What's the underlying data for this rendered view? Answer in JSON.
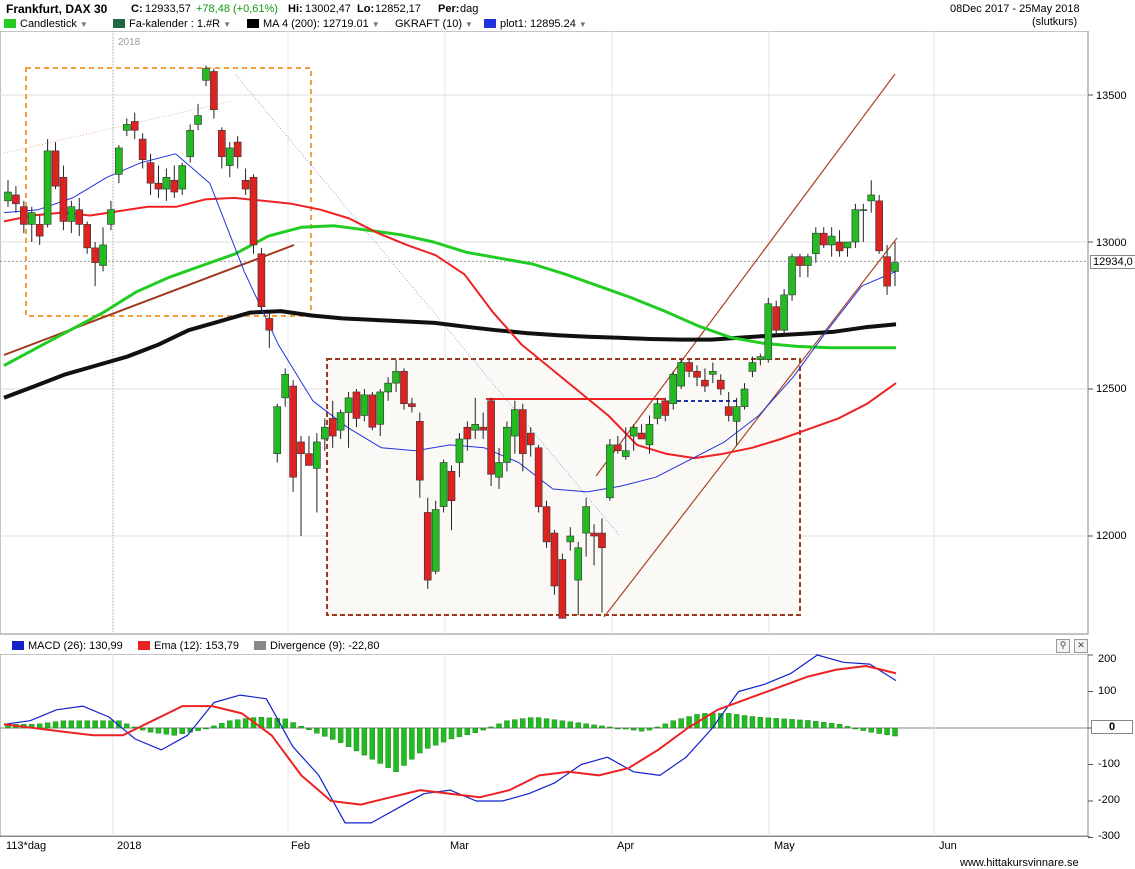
{
  "header": {
    "symbol": "Frankfurt, DAX 30",
    "close_label": "C:",
    "close": "12933,57",
    "change": "+78,48 (+0,61%)",
    "high_label": "Hi:",
    "high": "13002,47",
    "low_label": "Lo:",
    "low": "12852,17",
    "period_label": "Per:",
    "period": "dag",
    "date_range": "08Dec 2017 - 25May 2018",
    "price_basis": "(slutkurs)"
  },
  "legend": {
    "candlestick": "Candlestick",
    "fa_kalender": "Fa-kalender : 1.#R",
    "ma": "MA 4 (200): 12719.01",
    "gkraft": "GKRAFT (10)",
    "plot1": "plot1: 12895.24"
  },
  "colors": {
    "up": "#22bb22",
    "down": "#dd2222",
    "ma200": "#111111",
    "ema_green": "#22cc22",
    "ema_red": "#ee2222",
    "ma_blue": "#2233dd",
    "channel": "#aa4422",
    "box_orange": "#f4a040",
    "box_brown": "#a0391c"
  },
  "price_axis": {
    "ticks": [
      "13500",
      "13000",
      "12500",
      "12000"
    ],
    "current": "12934,0"
  },
  "year_label": "2018",
  "macd_legend": {
    "macd": "MACD (26): 130,99",
    "ema": "Ema (12): 153,79",
    "divergence": "Divergence (9): -22,80"
  },
  "macd_axis": {
    "ticks": [
      "200",
      "100",
      "0",
      "-100",
      "-200",
      "-300"
    ]
  },
  "time_axis": {
    "period_label": "113*dag",
    "months": [
      "2018",
      "Feb",
      "Mar",
      "Apr",
      "May",
      "Jun"
    ]
  },
  "footer": {
    "site": "www.hittakursvinnare.se"
  },
  "chart_data": {
    "type": "candlestick",
    "title": "Frankfurt, DAX 30",
    "ylim": [
      11700,
      13700
    ],
    "x_range": [
      "2017-12-08",
      "2018-05-25"
    ],
    "candles": [
      {
        "o": 13140,
        "h": 13210,
        "l": 13120,
        "c": 13170
      },
      {
        "o": 13160,
        "h": 13190,
        "l": 13100,
        "c": 13130
      },
      {
        "o": 13120,
        "h": 13140,
        "l": 13030,
        "c": 13060
      },
      {
        "o": 13060,
        "h": 13120,
        "l": 13000,
        "c": 13100
      },
      {
        "o": 13060,
        "h": 13090,
        "l": 12990,
        "c": 13020
      },
      {
        "o": 13060,
        "h": 13350,
        "l": 13050,
        "c": 13310
      },
      {
        "o": 13310,
        "h": 13340,
        "l": 13180,
        "c": 13190
      },
      {
        "o": 13220,
        "h": 13260,
        "l": 13040,
        "c": 13070
      },
      {
        "o": 13070,
        "h": 13140,
        "l": 13030,
        "c": 13120
      },
      {
        "o": 13110,
        "h": 13150,
        "l": 13020,
        "c": 13060
      },
      {
        "o": 13060,
        "h": 13070,
        "l": 12960,
        "c": 12980
      },
      {
        "o": 12980,
        "h": 13000,
        "l": 12850,
        "c": 12930
      },
      {
        "o": 12920,
        "h": 13050,
        "l": 12900,
        "c": 12990
      },
      {
        "o": 13060,
        "h": 13140,
        "l": 13040,
        "c": 13110
      },
      {
        "o": 13230,
        "h": 13330,
        "l": 13200,
        "c": 13320
      },
      {
        "o": 13380,
        "h": 13420,
        "l": 13360,
        "c": 13400
      },
      {
        "o": 13410,
        "h": 13440,
        "l": 13350,
        "c": 13380
      },
      {
        "o": 13350,
        "h": 13370,
        "l": 13250,
        "c": 13280
      },
      {
        "o": 13270,
        "h": 13300,
        "l": 13160,
        "c": 13200
      },
      {
        "o": 13200,
        "h": 13260,
        "l": 13150,
        "c": 13180
      },
      {
        "o": 13180,
        "h": 13250,
        "l": 13140,
        "c": 13220
      },
      {
        "o": 13210,
        "h": 13260,
        "l": 13150,
        "c": 13170
      },
      {
        "o": 13180,
        "h": 13270,
        "l": 13160,
        "c": 13260
      },
      {
        "o": 13290,
        "h": 13400,
        "l": 13270,
        "c": 13380
      },
      {
        "o": 13400,
        "h": 13470,
        "l": 13380,
        "c": 13430
      },
      {
        "o": 13550,
        "h": 13600,
        "l": 13530,
        "c": 13590
      },
      {
        "o": 13580,
        "h": 13590,
        "l": 13420,
        "c": 13450
      },
      {
        "o": 13380,
        "h": 13390,
        "l": 13250,
        "c": 13290
      },
      {
        "o": 13260,
        "h": 13340,
        "l": 13220,
        "c": 13320
      },
      {
        "o": 13340,
        "h": 13360,
        "l": 13250,
        "c": 13290
      },
      {
        "o": 13210,
        "h": 13250,
        "l": 13160,
        "c": 13180
      },
      {
        "o": 13220,
        "h": 13230,
        "l": 12960,
        "c": 12990
      },
      {
        "o": 12960,
        "h": 12980,
        "l": 12760,
        "c": 12780
      },
      {
        "o": 12740,
        "h": 12760,
        "l": 12640,
        "c": 12700
      },
      {
        "o": 12280,
        "h": 12450,
        "l": 12250,
        "c": 12440
      },
      {
        "o": 12470,
        "h": 12570,
        "l": 12440,
        "c": 12550
      },
      {
        "o": 12510,
        "h": 12530,
        "l": 12150,
        "c": 12200
      },
      {
        "o": 12320,
        "h": 12340,
        "l": 12000,
        "c": 12280
      },
      {
        "o": 12280,
        "h": 12340,
        "l": 12250,
        "c": 12240
      },
      {
        "o": 12230,
        "h": 12350,
        "l": 12080,
        "c": 12320
      },
      {
        "o": 12330,
        "h": 12400,
        "l": 12290,
        "c": 12370
      },
      {
        "o": 12400,
        "h": 12460,
        "l": 12300,
        "c": 12340
      },
      {
        "o": 12360,
        "h": 12430,
        "l": 12330,
        "c": 12420
      },
      {
        "o": 12420,
        "h": 12490,
        "l": 12300,
        "c": 12470
      },
      {
        "o": 12490,
        "h": 12500,
        "l": 12370,
        "c": 12400
      },
      {
        "o": 12410,
        "h": 12500,
        "l": 12390,
        "c": 12480
      },
      {
        "o": 12480,
        "h": 12490,
        "l": 12360,
        "c": 12370
      },
      {
        "o": 12380,
        "h": 12500,
        "l": 12340,
        "c": 12490
      },
      {
        "o": 12490,
        "h": 12540,
        "l": 12460,
        "c": 12520
      },
      {
        "o": 12520,
        "h": 12600,
        "l": 12490,
        "c": 12560
      },
      {
        "o": 12560,
        "h": 12570,
        "l": 12430,
        "c": 12450
      },
      {
        "o": 12450,
        "h": 12470,
        "l": 12420,
        "c": 12440
      },
      {
        "o": 12390,
        "h": 12420,
        "l": 12130,
        "c": 12190
      },
      {
        "o": 12080,
        "h": 12130,
        "l": 11820,
        "c": 11850
      },
      {
        "o": 11880,
        "h": 12120,
        "l": 11870,
        "c": 12090
      },
      {
        "o": 12100,
        "h": 12260,
        "l": 12080,
        "c": 12250
      },
      {
        "o": 12220,
        "h": 12240,
        "l": 12020,
        "c": 12120
      },
      {
        "o": 12250,
        "h": 12350,
        "l": 12200,
        "c": 12330
      },
      {
        "o": 12370,
        "h": 12390,
        "l": 12290,
        "c": 12330
      },
      {
        "o": 12360,
        "h": 12470,
        "l": 12330,
        "c": 12380
      },
      {
        "o": 12370,
        "h": 12420,
        "l": 12330,
        "c": 12360
      },
      {
        "o": 12460,
        "h": 12470,
        "l": 12170,
        "c": 12210
      },
      {
        "o": 12200,
        "h": 12300,
        "l": 12160,
        "c": 12250
      },
      {
        "o": 12250,
        "h": 12390,
        "l": 12220,
        "c": 12370
      },
      {
        "o": 12340,
        "h": 12460,
        "l": 12280,
        "c": 12430
      },
      {
        "o": 12430,
        "h": 12450,
        "l": 12220,
        "c": 12280
      },
      {
        "o": 12350,
        "h": 12370,
        "l": 12270,
        "c": 12310
      },
      {
        "o": 12300,
        "h": 12310,
        "l": 12080,
        "c": 12100
      },
      {
        "o": 12100,
        "h": 12120,
        "l": 11960,
        "c": 11980
      },
      {
        "o": 12010,
        "h": 12020,
        "l": 11800,
        "c": 11830
      },
      {
        "o": 11920,
        "h": 11940,
        "l": 11720,
        "c": 11720
      },
      {
        "o": 11980,
        "h": 12030,
        "l": 11950,
        "c": 12000
      },
      {
        "o": 11850,
        "h": 11980,
        "l": 11730,
        "c": 11960
      },
      {
        "o": 12010,
        "h": 12130,
        "l": 11930,
        "c": 12100
      },
      {
        "o": 12010,
        "h": 12040,
        "l": 11900,
        "c": 12000
      },
      {
        "o": 12010,
        "h": 12060,
        "l": 11740,
        "c": 11960
      },
      {
        "o": 12130,
        "h": 12330,
        "l": 12120,
        "c": 12310
      },
      {
        "o": 12310,
        "h": 12340,
        "l": 12280,
        "c": 12290
      },
      {
        "o": 12270,
        "h": 12370,
        "l": 12260,
        "c": 12290
      },
      {
        "o": 12340,
        "h": 12380,
        "l": 12290,
        "c": 12370
      },
      {
        "o": 12350,
        "h": 12380,
        "l": 12330,
        "c": 12330
      },
      {
        "o": 12310,
        "h": 12410,
        "l": 12280,
        "c": 12380
      },
      {
        "o": 12400,
        "h": 12470,
        "l": 12380,
        "c": 12450
      },
      {
        "o": 12460,
        "h": 12470,
        "l": 12390,
        "c": 12410
      },
      {
        "o": 12450,
        "h": 12560,
        "l": 12430,
        "c": 12550
      },
      {
        "o": 12510,
        "h": 12600,
        "l": 12500,
        "c": 12590
      },
      {
        "o": 12590,
        "h": 12600,
        "l": 12540,
        "c": 12560
      },
      {
        "o": 12560,
        "h": 12580,
        "l": 12510,
        "c": 12540
      },
      {
        "o": 12530,
        "h": 12570,
        "l": 12490,
        "c": 12510
      },
      {
        "o": 12550,
        "h": 12590,
        "l": 12520,
        "c": 12560
      },
      {
        "o": 12530,
        "h": 12550,
        "l": 12480,
        "c": 12500
      },
      {
        "o": 12440,
        "h": 12490,
        "l": 12390,
        "c": 12410
      },
      {
        "o": 12390,
        "h": 12470,
        "l": 12310,
        "c": 12440
      },
      {
        "o": 12440,
        "h": 12520,
        "l": 12430,
        "c": 12500
      },
      {
        "o": 12560,
        "h": 12610,
        "l": 12540,
        "c": 12590
      },
      {
        "o": 12600,
        "h": 12620,
        "l": 12580,
        "c": 12610
      },
      {
        "o": 12600,
        "h": 12810,
        "l": 12590,
        "c": 12790
      },
      {
        "o": 12780,
        "h": 12800,
        "l": 12680,
        "c": 12700
      },
      {
        "o": 12700,
        "h": 12840,
        "l": 12680,
        "c": 12820
      },
      {
        "o": 12820,
        "h": 12960,
        "l": 12800,
        "c": 12950
      },
      {
        "o": 12950,
        "h": 12960,
        "l": 12880,
        "c": 12920
      },
      {
        "o": 12920,
        "h": 12960,
        "l": 12880,
        "c": 12950
      },
      {
        "o": 12960,
        "h": 13050,
        "l": 12930,
        "c": 13030
      },
      {
        "o": 13030,
        "h": 13050,
        "l": 12980,
        "c": 12990
      },
      {
        "o": 12990,
        "h": 13050,
        "l": 12950,
        "c": 13020
      },
      {
        "o": 13000,
        "h": 13040,
        "l": 12950,
        "c": 12970
      },
      {
        "o": 12980,
        "h": 13000,
        "l": 12950,
        "c": 13000
      },
      {
        "o": 13000,
        "h": 13130,
        "l": 12980,
        "c": 13110
      },
      {
        "o": 13110,
        "h": 13130,
        "l": 13000,
        "c": 13110
      },
      {
        "o": 13140,
        "h": 13210,
        "l": 13100,
        "c": 13160
      },
      {
        "o": 13140,
        "h": 13160,
        "l": 12960,
        "c": 12970
      },
      {
        "o": 12950,
        "h": 12990,
        "l": 12820,
        "c": 12850
      },
      {
        "o": 12900,
        "h": 13000,
        "l": 12850,
        "c": 12930
      }
    ],
    "ma200": [
      12470,
      12510,
      12550,
      12580,
      12610,
      12650,
      12700,
      12730,
      12760,
      12765,
      12750,
      12740,
      12735,
      12730,
      12725,
      12712,
      12700,
      12690,
      12683,
      12678,
      12674,
      12670,
      12668,
      12668,
      12675,
      12682,
      12688,
      12695,
      12710,
      12720
    ],
    "ema_green": [
      12580,
      12640,
      12700,
      12760,
      12830,
      12880,
      12920,
      12960,
      13020,
      13050,
      13055,
      13040,
      13025,
      13000,
      12965,
      12945,
      12925,
      12890,
      12850,
      12810,
      12765,
      12715,
      12675,
      12655,
      12645,
      12640,
      12640,
      12640
    ],
    "ema_red": [
      13070,
      13090,
      13100,
      13090,
      13105,
      13120,
      13120,
      13145,
      13150,
      13140,
      13130,
      13110,
      13080,
      13030,
      12990,
      12955,
      12890,
      12760,
      12650,
      12570,
      12490,
      12410,
      12310,
      12280,
      12265,
      12280,
      12300,
      12330,
      12365,
      12400,
      12450,
      12520
    ],
    "ma_blue": [
      13100,
      13110,
      13150,
      13220,
      13270,
      13300,
      13200,
      12900,
      12650,
      12460,
      12370,
      12300,
      12290,
      12310,
      12300,
      12250,
      12160,
      12150,
      12170,
      12200,
      12260,
      12320,
      12410,
      12540,
      12700,
      12850,
      12900
    ],
    "macd_line": [
      10,
      20,
      50,
      60,
      30,
      -30,
      -60,
      -20,
      70,
      90,
      80,
      -50,
      -130,
      -260,
      -260,
      -220,
      -180,
      -170,
      -200,
      -200,
      -180,
      -150,
      -100,
      -80,
      -120,
      -130,
      -80,
      0,
      100,
      120,
      150,
      200,
      180,
      175,
      130
    ],
    "macd_signal": [
      10,
      0,
      -10,
      -20,
      -20,
      20,
      60,
      60,
      40,
      -20,
      -130,
      -200,
      -210,
      -190,
      -170,
      -180,
      -190,
      -170,
      -130,
      -120,
      -130,
      -110,
      -60,
      0,
      50,
      80,
      110,
      140,
      160,
      170,
      150
    ],
    "macd_hist": [
      10,
      10,
      20,
      20,
      20,
      -10,
      -20,
      -5,
      20,
      30,
      25,
      -10,
      -40,
      -80,
      -120,
      -60,
      -30,
      -10,
      20,
      30,
      20,
      10,
      0,
      -10,
      20,
      40,
      40,
      30,
      25,
      20,
      10,
      -10,
      -22
    ]
  }
}
